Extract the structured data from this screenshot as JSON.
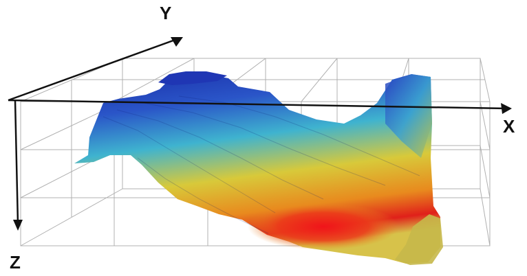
{
  "axes": {
    "x_label": "X",
    "y_label": "Y",
    "z_label": "Z"
  },
  "colors": {
    "axis": "#111111",
    "grid": "#b0b0b0",
    "surface_deep_blue": "#1a2ea8",
    "surface_blue": "#2a55c8",
    "surface_cyan": "#3fb3cf",
    "surface_yellow": "#d8c93a",
    "surface_orange": "#e88a1e",
    "surface_red": "#e0201a",
    "surface_olive": "#b9b24a"
  },
  "legend": "none",
  "grid": true
}
